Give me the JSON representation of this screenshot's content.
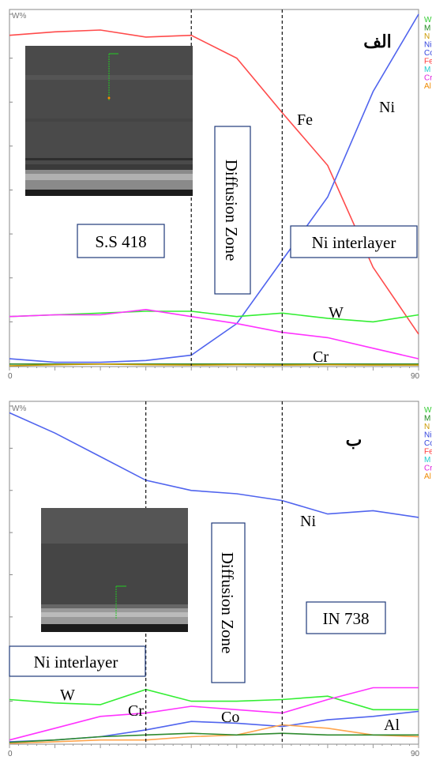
{
  "chart_data": [
    {
      "type": "line",
      "title": "الف",
      "ylabel": "W%",
      "x_end_label": "90",
      "x_start_label": "0",
      "x": [
        0,
        10,
        20,
        30,
        40,
        50,
        60,
        70,
        80,
        90
      ],
      "ylim": [
        0,
        100
      ],
      "series": [
        {
          "name": "Fe",
          "color": "#ff4b4b",
          "values": [
            94,
            95,
            95.5,
            93.5,
            94,
            87.5,
            72,
            57,
            28,
            9
          ]
        },
        {
          "name": "Ni",
          "color": "#5064ee",
          "values": [
            2,
            1,
            1,
            1.5,
            3,
            12,
            30,
            48,
            78,
            100
          ]
        },
        {
          "name": "W",
          "color": "#33ee33",
          "values": [
            14,
            14.5,
            15,
            15.5,
            15.5,
            14,
            15,
            13.5,
            12.5,
            14.5
          ]
        },
        {
          "name": "Cr",
          "color": "#ff33ff",
          "values": [
            14,
            14.5,
            14.5,
            16,
            14,
            12,
            9.5,
            8,
            5,
            2
          ]
        },
        {
          "name": "",
          "color": "#2e8a2e",
          "values": [
            0.5,
            0.5,
            0.5,
            0.5,
            0.5,
            0.5,
            0.5,
            0.5,
            0.5,
            0.5
          ]
        },
        {
          "name": "",
          "color": "#cc9a00",
          "values": [
            0,
            0.3,
            0.5,
            0.3,
            0.2,
            0.3,
            0.2,
            0.3,
            0.2,
            0.2
          ]
        }
      ],
      "dividers_x": [
        40,
        60
      ],
      "labels": {
        "ss418": "S.S 418",
        "diffusion_zone": "Diffusion Zone",
        "ni_interlayer": "Ni interlayer",
        "fe": "Fe",
        "ni": "Ni",
        "w": "W",
        "cr": "Cr"
      },
      "legend_stub": [
        "W",
        "M",
        "N",
        "Ni",
        "Co",
        "Fe",
        "M",
        "Cr",
        "Al"
      ],
      "legend_stub_colors": [
        "#33cc33",
        "#1e8a1e",
        "#cc9a00",
        "#3344dd",
        "#3344dd",
        "#ff3b3b",
        "#22cccc",
        "#dd22dd",
        "#ee8a00"
      ]
    },
    {
      "type": "line",
      "title": "ب",
      "ylabel": "W%",
      "x_end_label": "90",
      "x_start_label": "0",
      "x": [
        0,
        10,
        20,
        30,
        40,
        50,
        60,
        70,
        80,
        90
      ],
      "ylim": [
        0,
        100
      ],
      "series": [
        {
          "name": "Ni",
          "color": "#5064ee",
          "values": [
            98,
            92,
            85,
            78,
            75,
            74,
            72,
            68,
            69,
            67
          ]
        },
        {
          "name": "W",
          "color": "#33ee33",
          "values": [
            13,
            12,
            11.5,
            16,
            12.5,
            12.5,
            13,
            14,
            10,
            10
          ]
        },
        {
          "name": "Cr",
          "color": "#ff33ff",
          "values": [
            1,
            4.5,
            8,
            9,
            11,
            10,
            9,
            13,
            16.5,
            16.5
          ]
        },
        {
          "name": "Co",
          "color": "#5064ee",
          "values": [
            0.5,
            1,
            2,
            4,
            6.5,
            6,
            5,
            7,
            8,
            9.5
          ]
        },
        {
          "name": "Al",
          "color": "#ffa54d",
          "values": [
            0,
            0.5,
            1,
            1,
            2,
            2.5,
            5.5,
            4.5,
            2.5,
            2
          ]
        },
        {
          "name": "",
          "color": "#2e8a2e",
          "values": [
            0.3,
            1,
            2,
            2.5,
            3,
            2.5,
            3,
            2.5,
            2.5,
            2.5
          ]
        }
      ],
      "dividers_x": [
        30,
        60
      ],
      "labels": {
        "in738": "IN 738",
        "diffusion_zone": "Diffusion Zone",
        "ni_interlayer": "Ni interlayer",
        "ni": "Ni",
        "w": "W",
        "cr": "Cr",
        "co": "Co",
        "al": "Al"
      },
      "legend_stub": [
        "W",
        "M",
        "N",
        "Ni",
        "Co",
        "Fe",
        "M",
        "Cr",
        "Al"
      ],
      "legend_stub_colors": [
        "#33cc33",
        "#1e8a1e",
        "#cc9a00",
        "#3344dd",
        "#3344dd",
        "#ff3b3b",
        "#22cccc",
        "#dd22dd",
        "#ee8a00"
      ]
    }
  ]
}
